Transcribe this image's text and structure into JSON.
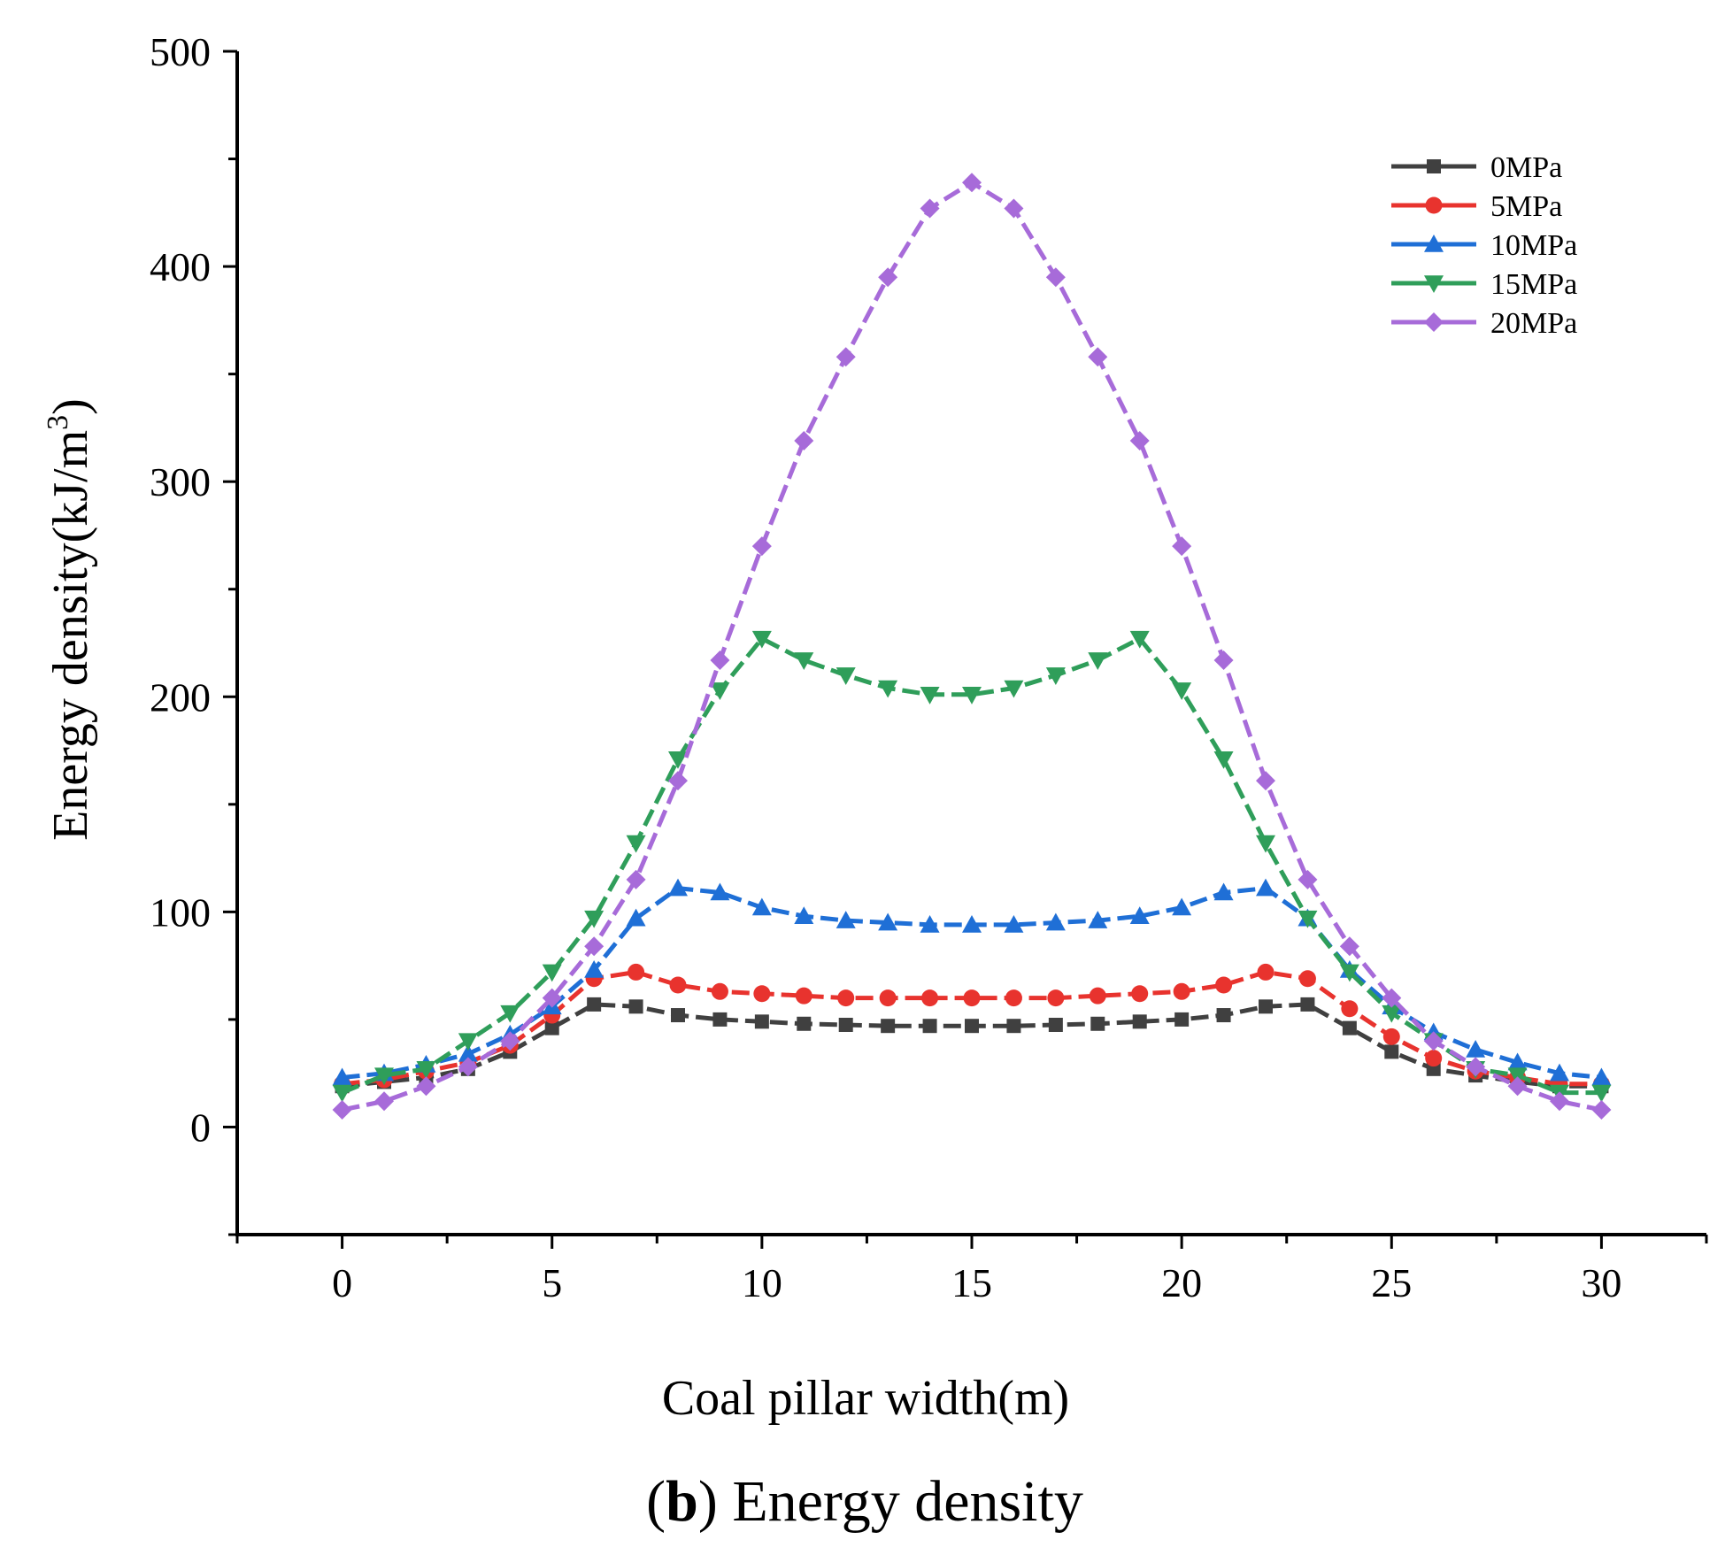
{
  "chart_data": {
    "type": "line",
    "xlabel": "Coal pillar width(m)",
    "ylabel": "Energy density(kJ/m",
    "ylabel_sup": "3",
    "ylabel_close": ")",
    "xlim": [
      -2.5,
      32.5
    ],
    "ylim": [
      -50,
      500
    ],
    "x_ticks": [
      0,
      5,
      10,
      15,
      20,
      25,
      30
    ],
    "y_ticks": [
      0,
      100,
      200,
      300,
      400,
      500
    ],
    "grid": false,
    "legend_position": "top-right",
    "x": [
      0,
      1,
      2,
      3,
      4,
      5,
      6,
      7,
      8,
      9,
      10,
      11,
      12,
      13,
      14,
      15,
      16,
      17,
      18,
      19,
      20,
      21,
      22,
      23,
      24,
      25,
      26,
      27,
      28,
      29,
      30
    ],
    "series": [
      {
        "name": "0MPa",
        "color": "#404040",
        "marker": "square",
        "values": [
          19,
          21,
          23,
          27,
          35,
          46,
          57,
          56,
          52,
          50,
          49,
          48,
          47.5,
          47,
          47,
          47,
          47,
          47.5,
          48,
          49,
          50,
          52,
          56,
          57,
          46,
          35,
          27,
          24,
          21,
          19,
          19
        ]
      },
      {
        "name": "5MPa",
        "color": "#e8332e",
        "marker": "circle",
        "values": [
          20,
          22,
          26,
          30,
          38,
          52,
          69,
          72,
          66,
          63,
          62,
          61,
          60,
          60,
          60,
          60,
          60,
          60,
          61,
          62,
          63,
          66,
          72,
          69,
          55,
          42,
          32,
          26,
          23,
          20,
          20
        ]
      },
      {
        "name": "10MPa",
        "color": "#1f6fd6",
        "marker": "triangle-up",
        "values": [
          23,
          25,
          29,
          34,
          43,
          56,
          73,
          97,
          111,
          109,
          102,
          98,
          96,
          95,
          94,
          94,
          94,
          95,
          96,
          98,
          102,
          109,
          111,
          97,
          73,
          56,
          44,
          36,
          30,
          25,
          23
        ]
      },
      {
        "name": "15MPa",
        "color": "#2f9e5a",
        "marker": "triangle-down",
        "values": [
          16,
          24,
          27,
          40,
          53,
          72,
          97,
          132,
          171,
          203,
          227,
          217,
          210,
          204,
          201,
          201,
          204,
          210,
          217,
          227,
          203,
          171,
          132,
          97,
          72,
          53,
          40,
          27,
          24,
          16,
          16
        ]
      },
      {
        "name": "20MPa",
        "color": "#a76bd9",
        "marker": "diamond",
        "values": [
          8,
          12,
          19,
          28,
          40,
          60,
          84,
          115,
          161,
          217,
          270,
          319,
          358,
          395,
          427,
          439,
          427,
          395,
          358,
          319,
          270,
          217,
          161,
          115,
          84,
          60,
          40,
          28,
          19,
          12,
          8
        ]
      }
    ]
  },
  "caption": {
    "open": "(",
    "letter": "b",
    "close": ")",
    "text": " Energy density"
  }
}
